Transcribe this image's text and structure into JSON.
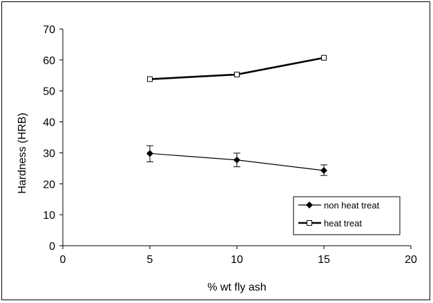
{
  "chart_data": {
    "type": "line",
    "title": "",
    "xlabel": "% wt fly ash",
    "ylabel": "Hardness (HRB)",
    "xlim": [
      0,
      20
    ],
    "ylim": [
      0,
      70
    ],
    "x_ticks": [
      0,
      5,
      10,
      15,
      20
    ],
    "y_ticks": [
      0,
      10,
      20,
      30,
      40,
      50,
      60,
      70
    ],
    "grid": false,
    "legend_position": "bottom-right",
    "series": [
      {
        "name": "non heat treat",
        "x": [
          5,
          10,
          15
        ],
        "y": [
          29.8,
          27.7,
          24.3
        ],
        "error_low": [
          2.7,
          2.2,
          1.6
        ],
        "error_high": [
          2.5,
          2.2,
          1.8
        ],
        "marker": "diamond",
        "color": "#000000"
      },
      {
        "name": "heat treat",
        "x": [
          5,
          10,
          15
        ],
        "y": [
          53.8,
          55.3,
          60.7
        ],
        "marker": "open-square",
        "color": "#000000"
      }
    ]
  }
}
